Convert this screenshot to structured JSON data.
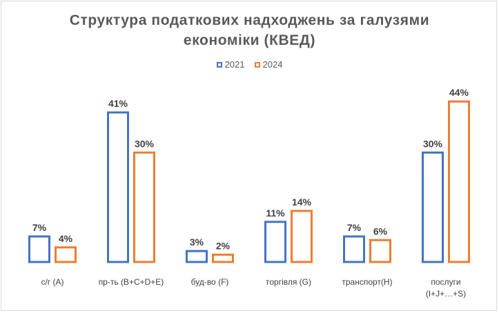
{
  "chart_data": {
    "type": "bar",
    "title_line1": "Структура податкових надходжень за галузями",
    "title_line2": "економіки (КВЕД)",
    "categories": [
      [
        "с/г (А)"
      ],
      [
        "пр-ть (B+C+D+E)"
      ],
      [
        "буд-во (F)"
      ],
      [
        "торгівля (G)"
      ],
      [
        "транспорт(H)"
      ],
      [
        "послуги",
        "(I+J+…+S)"
      ]
    ],
    "series": [
      {
        "name": "2021",
        "color": "#4472c4",
        "values": [
          7,
          41,
          3,
          11,
          7,
          30
        ]
      },
      {
        "name": "2024",
        "color": "#ed7d31",
        "values": [
          4,
          30,
          2,
          14,
          6,
          44
        ]
      }
    ],
    "value_suffix": "%",
    "ylim": [
      0,
      50
    ],
    "gridlines": false,
    "legend_position": "top-center"
  }
}
